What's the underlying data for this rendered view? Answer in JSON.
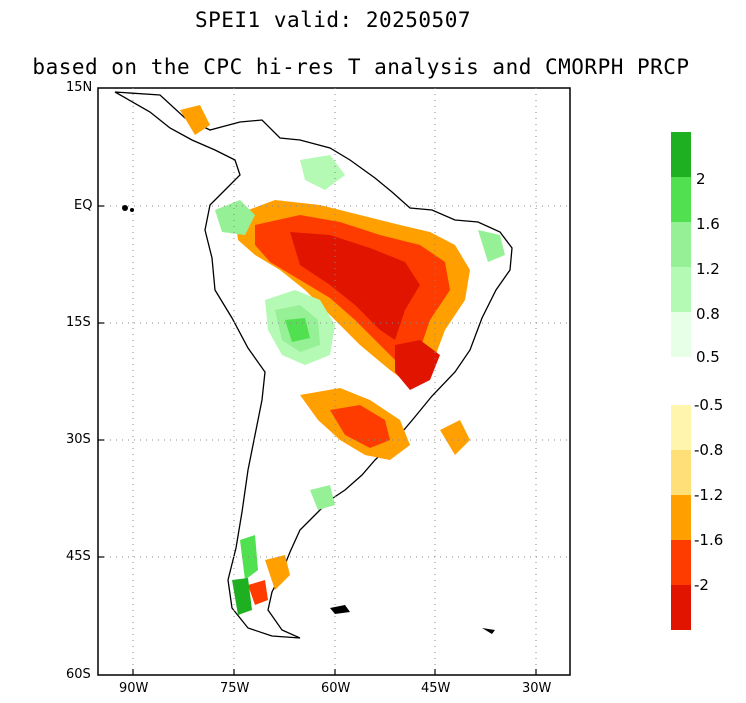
{
  "title_line1": "SPEI1   valid: 20250507",
  "title_line2": "based on the CPC hi-res T analysis and CMORPH PRCP",
  "lat_labels": [
    "15N",
    "EQ",
    "15S",
    "30S",
    "45S",
    "60S"
  ],
  "lon_labels": [
    "90W",
    "75W",
    "60W",
    "45W",
    "30W"
  ],
  "colorbar_wet": {
    "colors": [
      "#1fb021",
      "#50e050",
      "#96f096",
      "#b4fab4",
      "#e6ffe6"
    ],
    "labels": [
      "2",
      "1.6",
      "1.2",
      "0.8",
      "0.5"
    ]
  },
  "colorbar_dry": {
    "colors": [
      "#fff5ac",
      "#ffe078",
      "#ffa000",
      "#ff3c00",
      "#e11400"
    ],
    "labels": [
      "-0.5",
      "-0.8",
      "-1.2",
      "-1.6",
      "-2"
    ]
  }
}
